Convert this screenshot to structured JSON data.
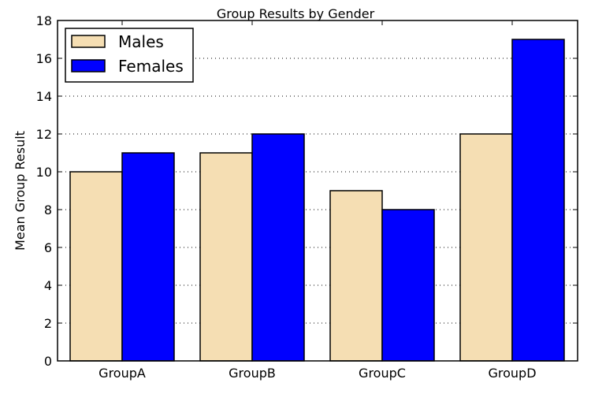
{
  "chart_data": {
    "type": "bar",
    "title": "Group Results by Gender",
    "xlabel": "",
    "ylabel": "Mean Group Result",
    "categories": [
      "GroupA",
      "GroupB",
      "GroupC",
      "GroupD"
    ],
    "series": [
      {
        "name": "Males",
        "values": [
          10,
          11,
          9,
          12
        ],
        "color": "#f5deb3"
      },
      {
        "name": "Females",
        "values": [
          11,
          12,
          8,
          17
        ],
        "color": "#0000ff"
      }
    ],
    "ylim": [
      0,
      18
    ],
    "yticks": [
      "0",
      "2",
      "4",
      "6",
      "8",
      "10",
      "12",
      "14",
      "16",
      "18"
    ],
    "grid": "y-dotted",
    "legend_position": "top-left",
    "colors": {
      "males": "#f5deb3",
      "females": "#0000ff",
      "edge": "#000000",
      "grid": "#000000"
    }
  }
}
